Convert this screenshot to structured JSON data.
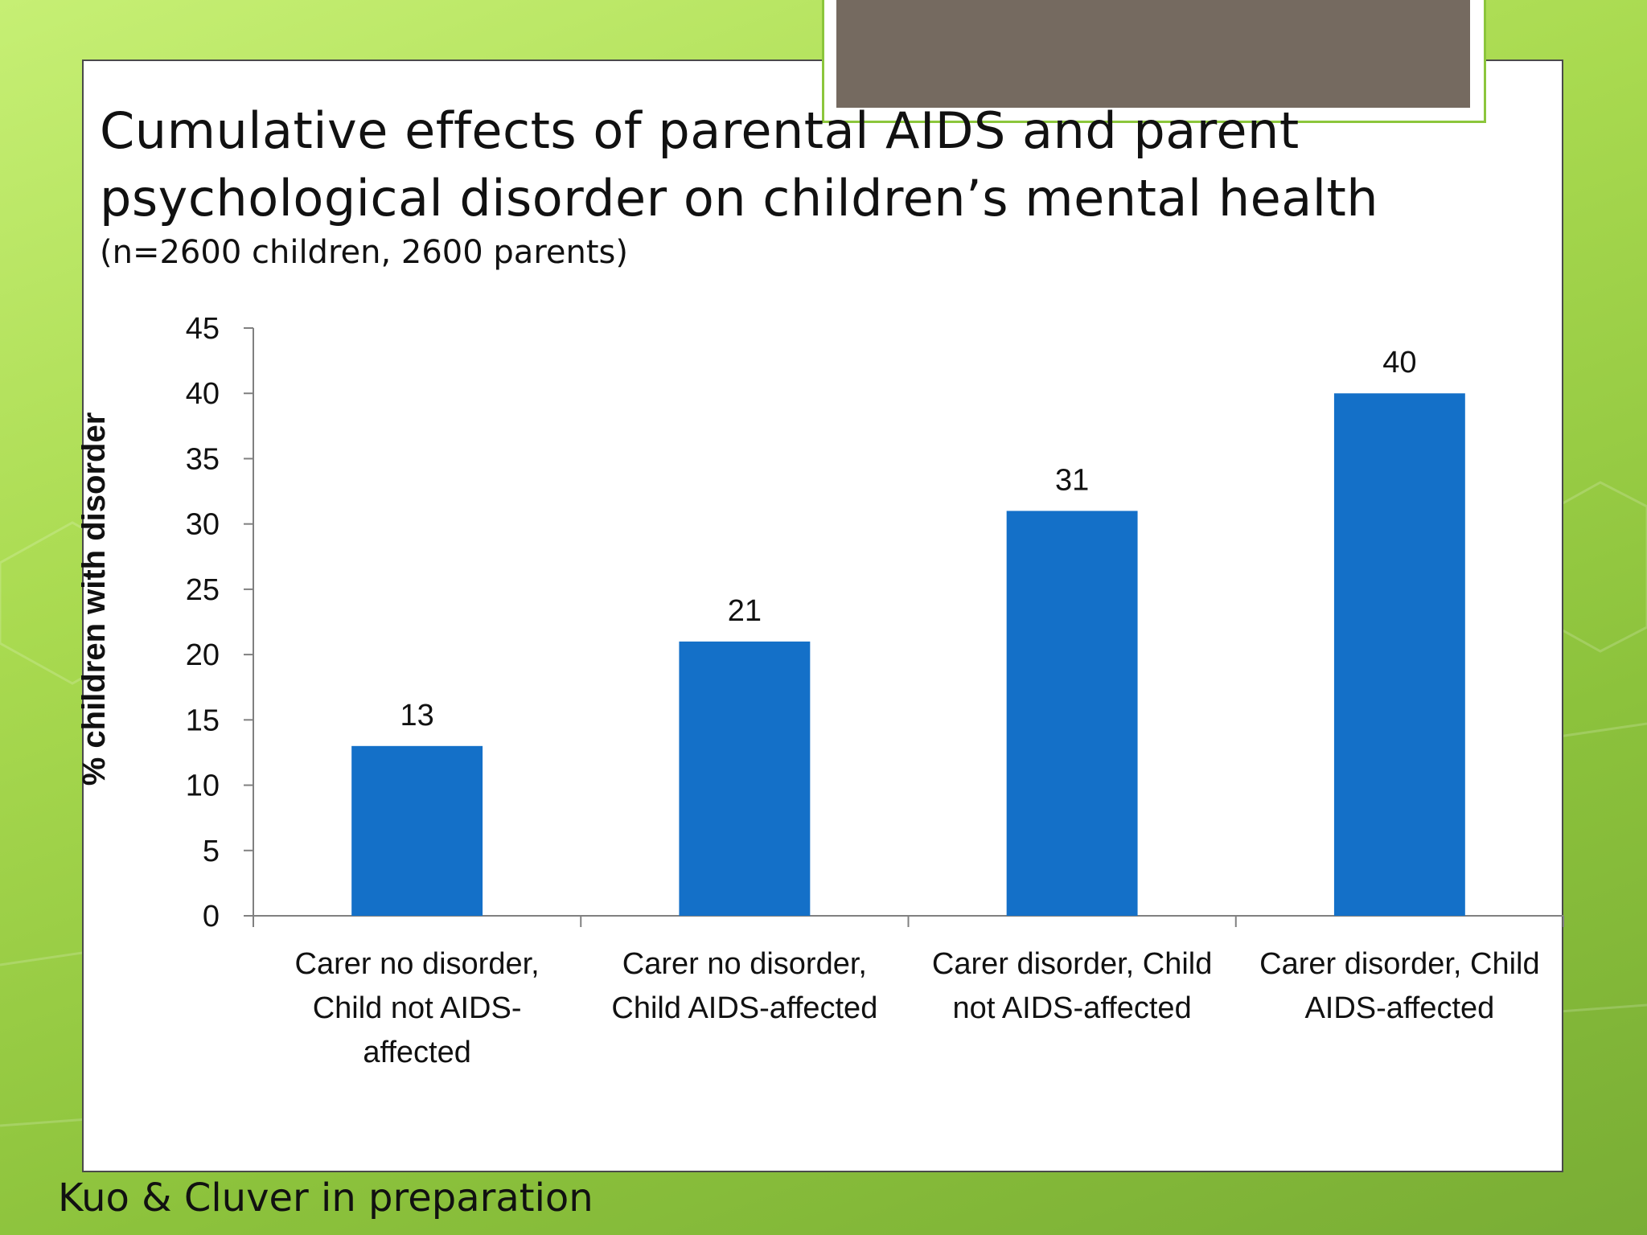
{
  "slide": {
    "title_line_1": "Cumulative effects of parental AIDS and parent",
    "title_line_2": "psychological disorder on children’s mental health",
    "subtitle": "(n=2600 children, 2600 parents)",
    "footer_credit": "Kuo & Cluver in preparation"
  },
  "colors": {
    "bar": "#1470c8",
    "background_green": "#a9da50",
    "deco_box": "#756a60",
    "text": "#111111"
  },
  "chart_data": {
    "type": "bar",
    "title": "",
    "xlabel": "",
    "ylabel": "% children with disorder",
    "ylim": [
      0,
      45
    ],
    "yticks": [
      0,
      5,
      10,
      15,
      20,
      25,
      30,
      35,
      40,
      45
    ],
    "grid": false,
    "legend": "none",
    "categories": [
      [
        "Carer no disorder,",
        "Child not AIDS-",
        "affected"
      ],
      [
        "Carer no disorder,",
        "Child AIDS-affected"
      ],
      [
        "Carer disorder, Child",
        "not AIDS-affected"
      ],
      [
        "Carer disorder, Child",
        "AIDS-affected"
      ]
    ],
    "values": [
      13,
      21,
      31,
      40
    ],
    "data_labels": [
      "13",
      "21",
      "31",
      "40"
    ]
  }
}
